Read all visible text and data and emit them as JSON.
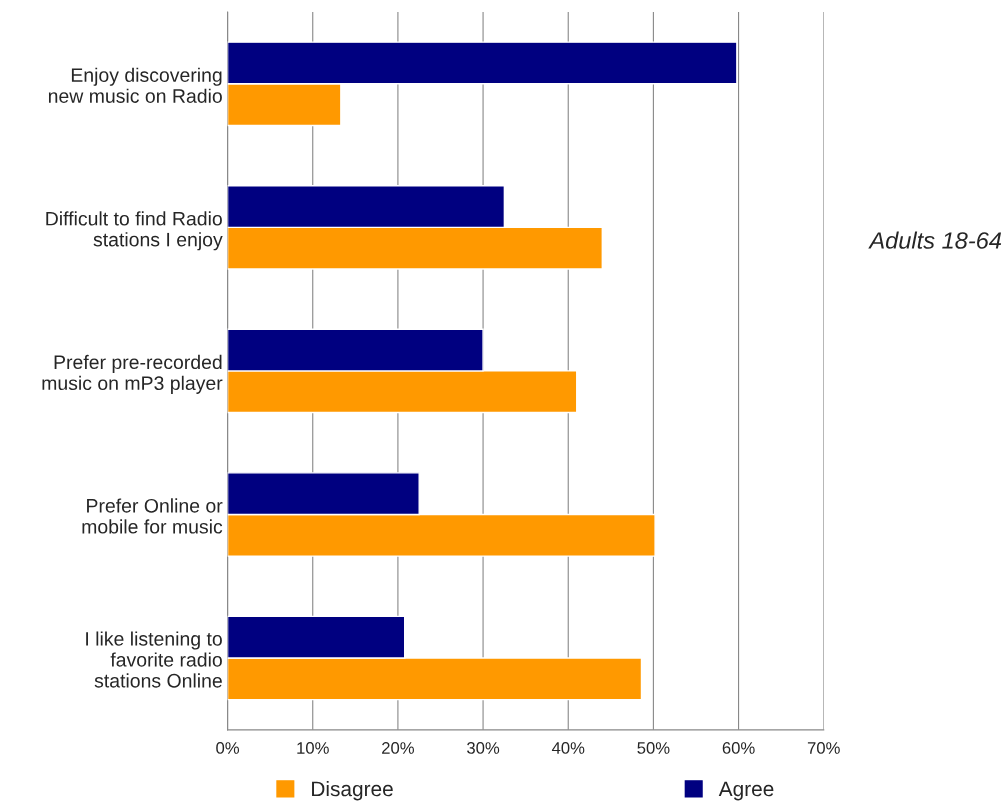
{
  "chart_data": {
    "type": "bar",
    "orientation": "horizontal",
    "categories": [
      "Enjoy discovering\nnew music on Radio",
      "Difficult to find Radio\nstations I enjoy",
      "Prefer pre-recorded\nmusic on mP3 player",
      "Prefer Online or\nmobile for music",
      "I like listening to\nfavorite radio\nstations Online"
    ],
    "series": [
      {
        "name": "Disagree",
        "color": "#ff9900",
        "values": [
          13.3,
          44,
          41,
          50.2,
          48.6
        ]
      },
      {
        "name": "Agree",
        "color": "#000080",
        "values": [
          59.8,
          32.5,
          30,
          22.5,
          20.8
        ]
      }
    ],
    "xlim": [
      0,
      70
    ],
    "xticks": [
      {
        "value": 0,
        "label": "0%"
      },
      {
        "value": 10,
        "label": "10%"
      },
      {
        "value": 20,
        "label": "20%"
      },
      {
        "value": 30,
        "label": "30%"
      },
      {
        "value": 40,
        "label": "40%"
      },
      {
        "value": 50,
        "label": "50%"
      },
      {
        "value": 60,
        "label": "60%"
      },
      {
        "value": 70,
        "label": "70%"
      }
    ],
    "grid": "x",
    "legend": "bottom",
    "annotations": [
      "Adults 18-64"
    ]
  }
}
